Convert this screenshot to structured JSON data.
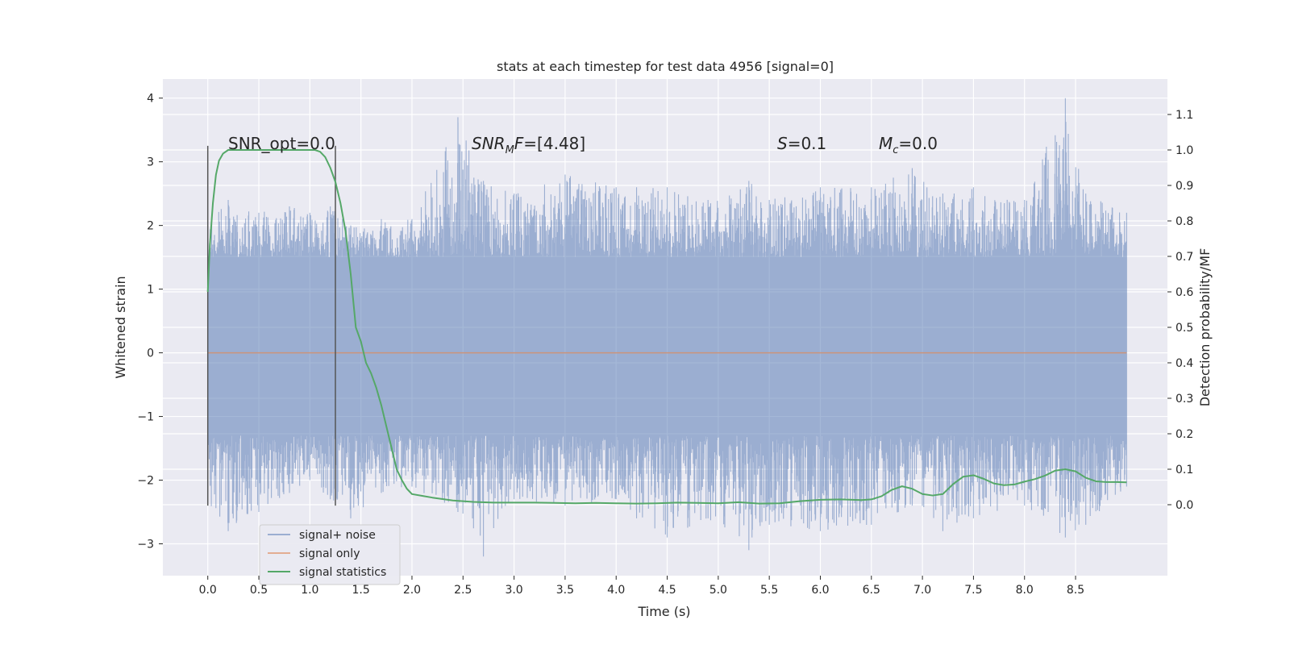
{
  "chart_data": {
    "type": "line",
    "title": "stats at each timestep for test data 4956 [signal=0]",
    "xlabel": "Time (s)",
    "ylabel": "Whitened strain",
    "ylabel_right": "Detection probability/MF",
    "xlim": [
      -0.44,
      9.4
    ],
    "ylim": [
      -3.5,
      4.3
    ],
    "ylim_right": [
      -0.2,
      1.2
    ],
    "x_ticks": [
      "0.0",
      "0.5",
      "1.0",
      "1.5",
      "2.0",
      "2.5",
      "3.0",
      "3.5",
      "4.0",
      "4.5",
      "5.0",
      "5.5",
      "6.0",
      "6.5",
      "7.0",
      "7.5",
      "8.0",
      "8.5"
    ],
    "y_ticks": [
      "−3",
      "−2",
      "−1",
      "0",
      "1",
      "2",
      "3",
      "4"
    ],
    "y_right_ticks": [
      "0.0",
      "0.1",
      "0.2",
      "0.3",
      "0.4",
      "0.5",
      "0.6",
      "0.7",
      "0.8",
      "0.9",
      "1.0",
      "1.1"
    ],
    "grid": true,
    "legend_position": "lower-left",
    "annotations": {
      "snr_opt": "SNR_opt=0.0",
      "snr_mf_main": "SNR",
      "snr_mf_sub": "M",
      "snr_mf_rest": "F=[4.48]",
      "s_main": "S",
      "s_rest": "=0.1",
      "mc_main": "M",
      "mc_sub": "c",
      "mc_rest": "=0.0"
    },
    "vlines": [
      0.0,
      1.25
    ],
    "series": [
      {
        "name": "signal+ noise",
        "color": "#4c72b0",
        "alpha": 0.5,
        "x_range": [
          0.0,
          9.0
        ],
        "envelope_peaks": [
          [
            0.0,
            2.0,
            -2.4
          ],
          [
            0.2,
            2.4,
            -2.8
          ],
          [
            0.5,
            2.2,
            -2.5
          ],
          [
            0.8,
            2.3,
            -2.2
          ],
          [
            1.0,
            2.2,
            -2.0
          ],
          [
            1.2,
            2.3,
            -2.3
          ],
          [
            1.4,
            2.0,
            -2.6
          ],
          [
            1.7,
            2.1,
            -2.2
          ],
          [
            2.0,
            2.1,
            -2.1
          ],
          [
            2.45,
            3.7,
            -2.5
          ],
          [
            2.7,
            2.7,
            -3.2
          ],
          [
            3.0,
            2.5,
            -2.3
          ],
          [
            3.5,
            2.8,
            -2.4
          ],
          [
            4.0,
            2.6,
            -2.3
          ],
          [
            4.2,
            2.6,
            -2.6
          ],
          [
            4.5,
            2.6,
            -2.9
          ],
          [
            4.9,
            2.4,
            -2.6
          ],
          [
            5.3,
            2.7,
            -3.1
          ],
          [
            5.5,
            2.4,
            -2.7
          ],
          [
            6.0,
            2.6,
            -2.8
          ],
          [
            6.5,
            2.6,
            -2.7
          ],
          [
            6.9,
            2.9,
            -2.4
          ],
          [
            7.2,
            2.5,
            -2.8
          ],
          [
            7.5,
            2.6,
            -2.6
          ],
          [
            8.0,
            2.4,
            -2.4
          ],
          [
            8.4,
            4.0,
            -2.9
          ],
          [
            8.6,
            2.5,
            -2.7
          ],
          [
            9.0,
            2.2,
            -2.1
          ]
        ],
        "band": [
          -1.3,
          1.5
        ]
      },
      {
        "name": "signal only",
        "color": "#dd8452",
        "x": [
          0.0,
          9.0
        ],
        "y": [
          0.0,
          0.0
        ]
      },
      {
        "name": "signal statistics",
        "color": "#55a868",
        "axis": "right",
        "x": [
          0.0,
          0.02,
          0.05,
          0.08,
          0.11,
          0.15,
          0.2,
          0.3,
          0.5,
          0.7,
          0.9,
          1.0,
          1.05,
          1.1,
          1.15,
          1.2,
          1.25,
          1.3,
          1.35,
          1.4,
          1.45,
          1.5,
          1.55,
          1.6,
          1.65,
          1.7,
          1.75,
          1.8,
          1.85,
          1.9,
          1.95,
          2.0,
          2.1,
          2.2,
          2.4,
          2.6,
          2.8,
          3.0,
          3.2,
          3.4,
          3.6,
          3.8,
          4.0,
          4.2,
          4.4,
          4.6,
          4.8,
          5.0,
          5.2,
          5.4,
          5.6,
          5.8,
          6.0,
          6.2,
          6.4,
          6.5,
          6.6,
          6.7,
          6.8,
          6.9,
          7.0,
          7.1,
          7.2,
          7.3,
          7.4,
          7.5,
          7.6,
          7.7,
          7.8,
          7.9,
          8.0,
          8.1,
          8.2,
          8.3,
          8.4,
          8.5,
          8.6,
          8.7,
          8.8,
          8.9,
          9.0
        ],
        "y": [
          0.6,
          0.73,
          0.85,
          0.93,
          0.97,
          0.99,
          1.0,
          1.0,
          1.0,
          1.0,
          1.0,
          1.0,
          1.0,
          0.995,
          0.98,
          0.95,
          0.91,
          0.85,
          0.77,
          0.65,
          0.5,
          0.46,
          0.4,
          0.37,
          0.33,
          0.28,
          0.22,
          0.16,
          0.1,
          0.07,
          0.045,
          0.03,
          0.025,
          0.02,
          0.012,
          0.008,
          0.006,
          0.006,
          0.006,
          0.005,
          0.004,
          0.005,
          0.004,
          0.003,
          0.004,
          0.006,
          0.005,
          0.004,
          0.007,
          0.003,
          0.004,
          0.01,
          0.014,
          0.015,
          0.013,
          0.015,
          0.024,
          0.042,
          0.052,
          0.045,
          0.03,
          0.026,
          0.03,
          0.058,
          0.079,
          0.083,
          0.073,
          0.06,
          0.055,
          0.057,
          0.065,
          0.072,
          0.082,
          0.096,
          0.1,
          0.094,
          0.076,
          0.066,
          0.064,
          0.064,
          0.063
        ]
      }
    ]
  }
}
